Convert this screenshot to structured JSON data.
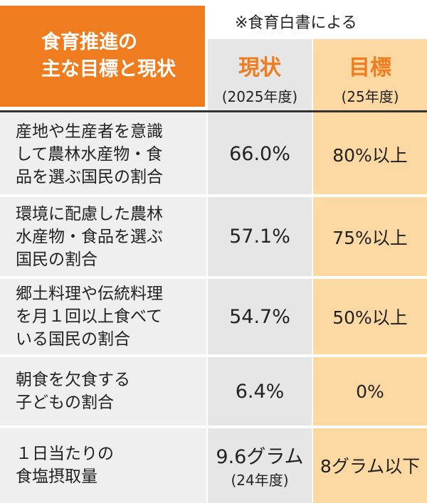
{
  "header": {
    "title": [
      "食育推進の",
      "主な目標と現状"
    ],
    "note": "※食育白書による",
    "columns": [
      {
        "title": "現状",
        "sub": "(2025年度)"
      },
      {
        "title": "目標",
        "sub": "(25年度)"
      }
    ]
  },
  "table": {
    "rows": [
      {
        "label": [
          "産地や生産者を意識",
          "して農林水産物・食",
          "品を選ぶ国民の割合"
        ],
        "current": [
          "66.0%"
        ],
        "target": "80%以上"
      },
      {
        "label": [
          "環境に配慮した農林",
          "水産物・食品を選ぶ",
          "国民の割合"
        ],
        "current": [
          "57.1%"
        ],
        "target": "75%以上"
      },
      {
        "label": [
          "郷土料理や伝統料理",
          "を月１回以上食べて",
          "いる国民の割合"
        ],
        "current": [
          "54.7%"
        ],
        "target": "50%以上"
      },
      {
        "label": [
          "朝食を欠食する",
          "子どもの割合"
        ],
        "current": [
          "6.4%"
        ],
        "target": "0%"
      },
      {
        "label": [
          "１日当たりの",
          "食塩摂取量"
        ],
        "current": [
          "9.6グラム",
          "(24年度)"
        ],
        "target": "8グラム以下"
      }
    ]
  }
}
